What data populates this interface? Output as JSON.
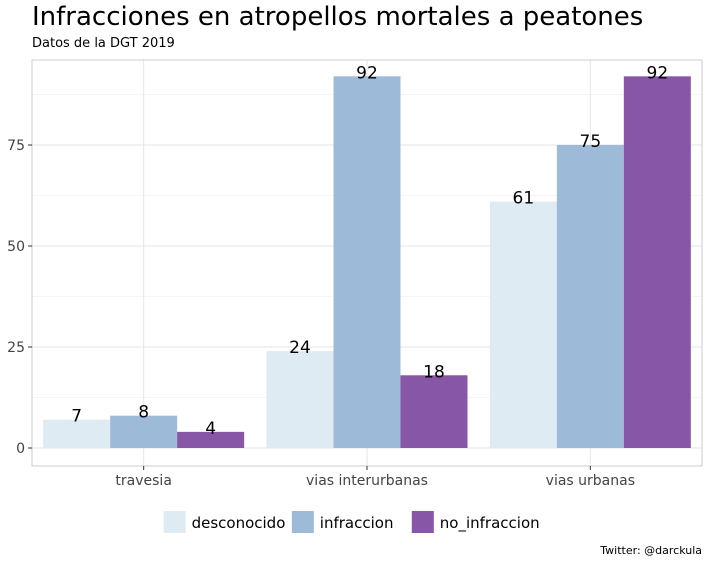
{
  "chart_data": {
    "type": "bar",
    "title": "Infracciones en atropellos mortales a peatones",
    "subtitle": "Datos de la DGT 2019",
    "caption": "Twitter: @darckula",
    "xlabel": "",
    "ylabel": "",
    "categories": [
      "travesia",
      "vias interurbanas",
      "vias urbanas"
    ],
    "series": [
      {
        "name": "desconocido",
        "values": [
          7,
          24,
          61
        ],
        "color": "#deebf3"
      },
      {
        "name": "infraccion",
        "values": [
          8,
          92,
          75
        ],
        "color": "#9ebad9"
      },
      {
        "name": "no_infraccion",
        "values": [
          4,
          18,
          92
        ],
        "color": "#8856a7"
      }
    ],
    "ylim": [
      0,
      97
    ],
    "yticks": [
      0,
      25,
      50,
      75
    ],
    "grid": true,
    "legend_position": "bottom"
  }
}
